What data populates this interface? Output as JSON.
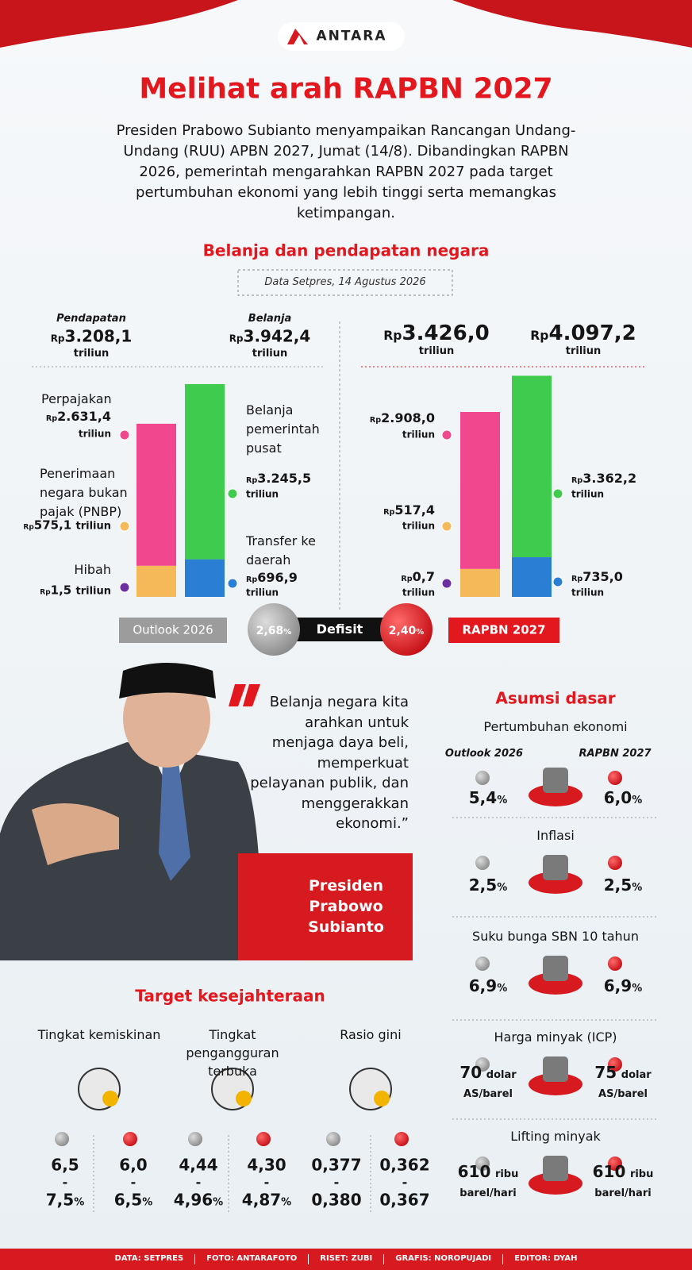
{
  "header": {
    "logo": "ANTARA",
    "title": "Melihat arah RAPBN 2027",
    "intro": "Presiden Prabowo Subianto menyampaikan Rancangan Undang-Undang (RUU) APBN 2027, Jumat (14/8). Dibandingkan RAPBN 2026, pemerintah mengarahkan RAPBN 2027 pada target pertumbuhan ekonomi yang lebih tinggi serta memangkas ketimpangan."
  },
  "budget": {
    "title": "Belanja dan pendapatan negara",
    "source": "Data Setpres, 14 Agustus 2026",
    "currency": "Rp",
    "unit": "triliun",
    "percent": "%",
    "pendapatan_label": "Pendapatan",
    "belanja_label": "Belanja",
    "defisit_label": "Defisit",
    "pendapatan_names": [
      "Perpajakan",
      "Penerimaan negara bukan pajak (PNBP)",
      "Hibah"
    ],
    "belanja_names": [
      "Belanja pemerintah pusat",
      "Transfer ke daerah"
    ],
    "periods": [
      {
        "name": "Outlook 2026",
        "pendapatan_total": "3.208,1",
        "belanja_total": "3.942,4",
        "defisit": "2,68",
        "pendapatan_items": [
          {
            "value": 2631.4,
            "label": "2.631,4"
          },
          {
            "value": 575.1,
            "label": "575,1"
          },
          {
            "value": 1.5,
            "label": "1,5"
          }
        ],
        "belanja_items": [
          {
            "value": 3245.5,
            "label": "3.245,5"
          },
          {
            "value": 696.9,
            "label": "696,9"
          }
        ]
      },
      {
        "name": "RAPBN 2027",
        "pendapatan_total": "3.426,0",
        "belanja_total": "4.097,2",
        "defisit": "2,40",
        "pendapatan_items": [
          {
            "value": 2908.0,
            "label": "2.908,0"
          },
          {
            "value": 517.4,
            "label": "517,4"
          },
          {
            "value": 0.7,
            "label": "0,7"
          }
        ],
        "belanja_items": [
          {
            "value": 3362.2,
            "label": "3.362,2"
          },
          {
            "value": 735.0,
            "label": "735,0"
          }
        ]
      }
    ]
  },
  "quote": {
    "text": "Belanja negara kita arahkan untuk menjaga daya beli, memperkuat pelayanan publik, dan menggerakkan ekonomi.”",
    "speaker": "Presiden Prabowo Subianto"
  },
  "assumptions": {
    "title": "Asumsi dasar",
    "items": [
      {
        "name": "Pertumbuhan ekonomi",
        "outlook": "5,4",
        "rapbn": "6,0",
        "unit": "%"
      },
      {
        "name": "Inflasi",
        "outlook": "2,5",
        "rapbn": "2,5",
        "unit": "%"
      },
      {
        "name": "Suku bunga SBN 10 tahun",
        "outlook": "6,9",
        "rapbn": "6,9",
        "unit": "%"
      },
      {
        "name": "Harga minyak (ICP)",
        "outlook": "70",
        "rapbn": "75",
        "unit": "dolar AS/barel"
      },
      {
        "name": "Lifting minyak",
        "outlook": "610",
        "rapbn": "610",
        "unit": "ribu barel/hari"
      }
    ]
  },
  "welfare": {
    "title": "Target kesejahteraan",
    "separator": "-",
    "items": [
      {
        "name": "Tingkat kemiskinan",
        "outlook": {
          "low": "6,5",
          "high": "7,5"
        },
        "rapbn": {
          "low": "6,0",
          "high": "6,5"
        },
        "unit": "%"
      },
      {
        "name": "Tingkat pengangguran terbuka",
        "outlook": {
          "low": "4,44",
          "high": "4,96"
        },
        "rapbn": {
          "low": "4,30",
          "high": "4,87"
        },
        "unit": "%"
      },
      {
        "name": "Rasio gini",
        "outlook": {
          "low": "0,377",
          "high": "0,380"
        },
        "rapbn": {
          "low": "0,362",
          "high": "0,367"
        }
      }
    ]
  },
  "footer": {
    "credits": [
      "DATA: SETPRES",
      "FOTO: ANTARAFOTO",
      "RISET: ZUBI",
      "GRAFIS: NOROPUJADI",
      "EDITOR: DYAH"
    ]
  }
}
